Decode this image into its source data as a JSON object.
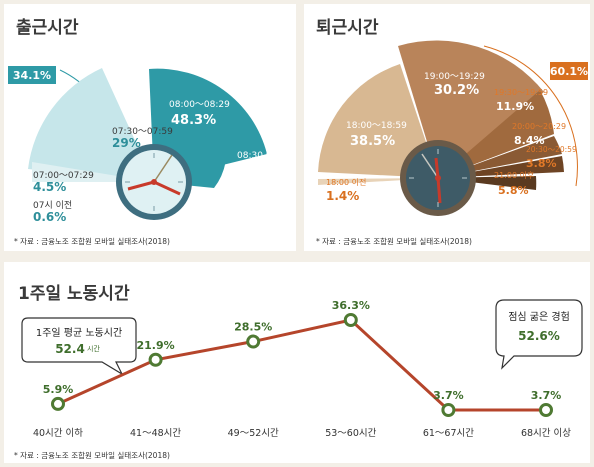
{
  "chart_data": [
    {
      "type": "pie",
      "title": "출근시간",
      "categories": [
        "07:30～07:59",
        "07:00～07:29",
        "08:00～08:29",
        "08:30 이후",
        "07시 이전"
      ],
      "values": [
        29,
        4.5,
        48.3,
        17.6,
        0.6
      ],
      "value_labels": [
        "29%",
        "4.5%",
        "48.3%",
        "17.6%",
        "0.6%"
      ],
      "group_share": "34.1%",
      "source": "* 자료 : 금융노조 조합원 모바일 실태조사(2018)",
      "colors": {
        "main": "#2e9aa6",
        "light": "#c6e6ea",
        "label": "#2e8f9a"
      }
    },
    {
      "type": "pie",
      "title": "퇴근시간",
      "categories": [
        "18:00～18:59",
        "19:00～19:29",
        "19:30～19:59",
        "20:00～20:29",
        "20:30～20:59",
        "18:00 이전",
        "21:00 이후"
      ],
      "values": [
        38.5,
        30.2,
        11.9,
        8.4,
        3.8,
        1.4,
        5.8
      ],
      "value_labels": [
        "38.5%",
        "30.2%",
        "11.9%",
        "8.4%",
        "3.8%",
        "1.4%",
        "5.8%"
      ],
      "group_share": "60.1%",
      "source": "* 자료 : 금융노조 조합원 모바일 실태조사(2018)",
      "colors": {
        "main": "#8a5a34",
        "accent": "#d9701f",
        "light": "#d8b892"
      }
    },
    {
      "type": "line",
      "title": "1주일 노동시간",
      "categories": [
        "40시간 이하",
        "41～48시간",
        "49～52시간",
        "53～60시간",
        "61～67시간",
        "68시간 이상"
      ],
      "values": [
        5.9,
        21.9,
        28.5,
        36.3,
        3.7,
        3.7
      ],
      "value_labels": [
        "5.9%",
        "21.9%",
        "28.5%",
        "36.3%",
        "3.7%",
        "3.7%"
      ],
      "callouts": [
        {
          "title": "1주일  평균  노동시간",
          "value": "52.4",
          "unit": "시간"
        },
        {
          "title": "점심  굶은  경험",
          "value": "52.6%"
        }
      ],
      "source": "* 자료 : 금융노조 조합원 모바일 실태조사(2018)",
      "colors": {
        "line": "#b5452b",
        "marker": "#4f7a33",
        "label": "#3f6e2c"
      }
    }
  ]
}
